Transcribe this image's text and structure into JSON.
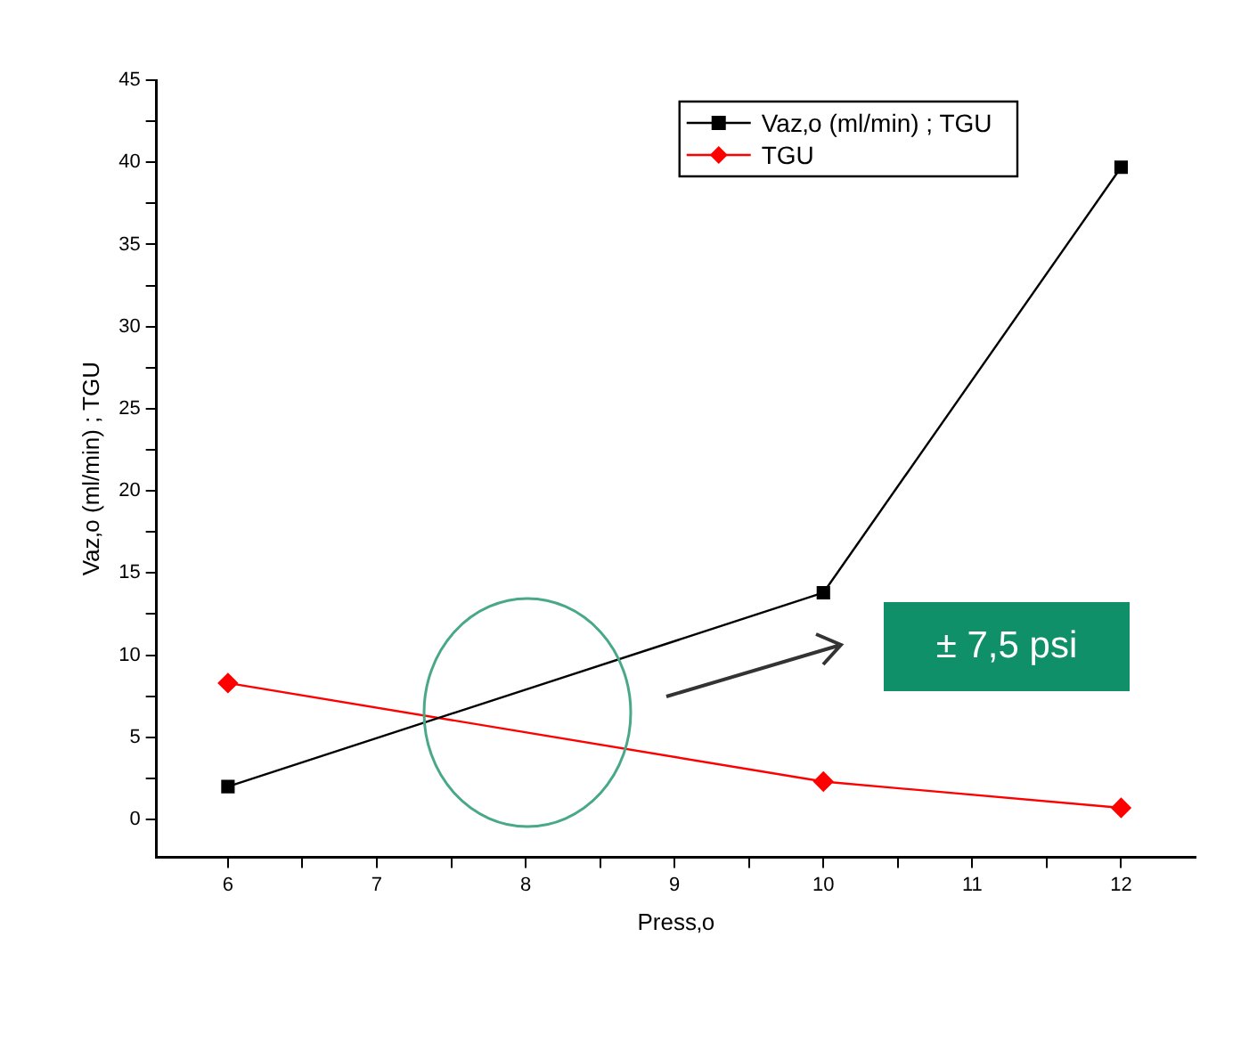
{
  "chart_data": {
    "type": "line",
    "xlabel": "Press‚o",
    "ylabel": "Vaz‚o (ml/min) ; TGU",
    "x": [
      6,
      10,
      12
    ],
    "series": [
      {
        "name": "Vaz‚o (ml/min) ; TGU",
        "color": "#000000",
        "values": [
          2.0,
          13.8,
          39.7
        ],
        "marker": "square"
      },
      {
        "name": "TGU",
        "color": "#ff0000",
        "values": [
          8.3,
          2.3,
          0.7
        ],
        "marker": "diamond"
      }
    ],
    "xlim": [
      5.52,
      12.5
    ],
    "xticks": [
      6,
      {
        "value": 6.5,
        "label": null
      },
      7,
      {
        "value": 7.5,
        "label": null
      },
      8,
      {
        "value": 8.5,
        "label": null
      },
      9,
      {
        "value": 9.5,
        "label": null
      },
      10,
      {
        "value": 10.5,
        "label": null
      },
      11,
      {
        "value": 11.5,
        "label": null
      },
      12
    ],
    "ylim": [
      -2.3,
      45
    ],
    "yticks": [
      0,
      {
        "value": 2.5,
        "label": null
      },
      5,
      {
        "value": 7.5,
        "label": null
      },
      10,
      {
        "value": 12.5,
        "label": null
      },
      15,
      {
        "value": 17.5,
        "label": null
      },
      20,
      {
        "value": 22.5,
        "label": null
      },
      25,
      {
        "value": 27.5,
        "label": null
      },
      30,
      {
        "value": 32.5,
        "label": null
      },
      35,
      {
        "value": 37.5,
        "label": null
      },
      40,
      {
        "value": 42.5,
        "label": null
      },
      45
    ],
    "grid": false,
    "legend": "top right",
    "line_style": "solid",
    "annotations": [
      "± 7,5 psi"
    ]
  }
}
